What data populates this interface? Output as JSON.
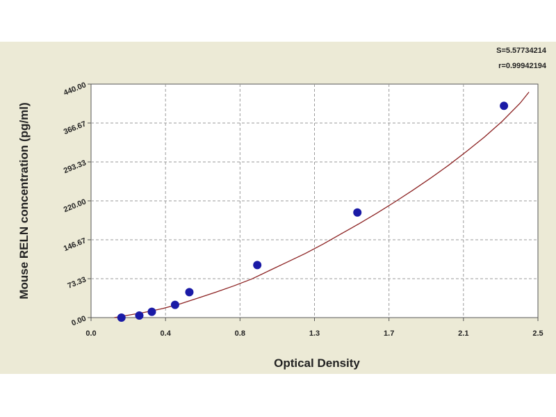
{
  "chart_data": {
    "type": "scatter",
    "title": "",
    "xlabel": "Optical Density",
    "ylabel": "Mouse RELN concentration (pg/ml)",
    "xlim": [
      0.0,
      2.5
    ],
    "ylim": [
      0.0,
      440.0
    ],
    "x_ticks": [
      "0.0",
      "0.4",
      "0.8",
      "1.3",
      "1.7",
      "2.1",
      "2.5"
    ],
    "y_ticks": [
      "0.00",
      "73.33",
      "146.67",
      "220.00",
      "293.33",
      "366.67",
      "440.00"
    ],
    "grid": true,
    "stats": [
      "S=5.57734214",
      "r=0.99942194"
    ],
    "colors": {
      "points": "#1a1aa6",
      "curve": "#8b2020",
      "panel": "#ecead6",
      "plot": "#ffffff"
    },
    "series": [
      {
        "values": [
          [
            0.17,
            0.0
          ],
          [
            0.27,
            4.0
          ],
          [
            0.34,
            11.0
          ],
          [
            0.47,
            24.0
          ],
          [
            0.55,
            48.0
          ],
          [
            0.93,
            99.0
          ],
          [
            1.49,
            198.0
          ],
          [
            2.31,
            399.0
          ]
        ]
      }
    ],
    "fit_curve": {
      "x": [
        0.13,
        0.2,
        0.3,
        0.4,
        0.5,
        0.6,
        0.7,
        0.8,
        0.9,
        1.0,
        1.1,
        1.2,
        1.3,
        1.4,
        1.5,
        1.6,
        1.7,
        1.8,
        1.9,
        2.0,
        2.1,
        2.2,
        2.3,
        2.4,
        2.45
      ],
      "y": [
        0.0,
        4.0,
        10.0,
        17.0,
        26.0,
        37.0,
        48.0,
        60.0,
        73.0,
        89.0,
        105.0,
        121.0,
        139.0,
        158.0,
        177.0,
        197.0,
        218.0,
        240.0,
        263.0,
        287.0,
        313.0,
        340.0,
        370.0,
        404.0,
        425.0
      ]
    }
  }
}
